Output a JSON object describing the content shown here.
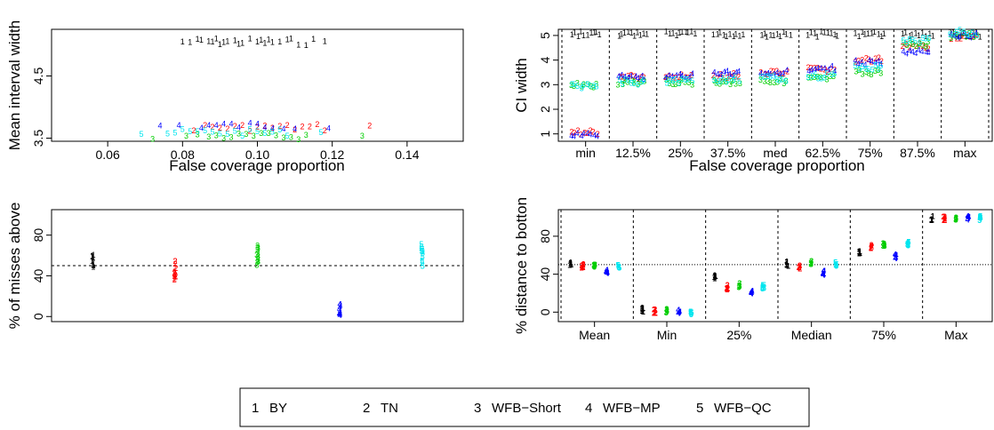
{
  "colors": {
    "1": "#000000",
    "2": "#ff0000",
    "3": "#00cd00",
    "4": "#0000ff",
    "5": "#00e5ee"
  },
  "legend": [
    {
      "code": "1",
      "label": "BY"
    },
    {
      "code": "2",
      "label": "TN"
    },
    {
      "code": "3",
      "label": "WFB−Short"
    },
    {
      "code": "4",
      "label": "WFB−MP"
    },
    {
      "code": "5",
      "label": "WFB−QC"
    }
  ],
  "chart_data": [
    {
      "type": "scatter",
      "xlabel": "False coverage proportion",
      "ylabel": "Mean interval width",
      "xlim": [
        0.045,
        0.155
      ],
      "ylim": [
        3.45,
        5.25
      ],
      "xticks": [
        "0.06",
        "0.08",
        "0.10",
        "0.12",
        "0.14"
      ],
      "yticks": [
        "3.5",
        "4.5"
      ],
      "series": [
        {
          "code": "1",
          "y": 5.05,
          "x": [
            0.08,
            0.082,
            0.084,
            0.085,
            0.087,
            0.088,
            0.089,
            0.09,
            0.091,
            0.092,
            0.094,
            0.095,
            0.096,
            0.098,
            0.1,
            0.101,
            0.102,
            0.103,
            0.104,
            0.106,
            0.108,
            0.109,
            0.111,
            0.113,
            0.115,
            0.118
          ]
        },
        {
          "code": "2",
          "y": 3.67,
          "x": [
            0.083,
            0.086,
            0.088,
            0.09,
            0.092,
            0.094,
            0.096,
            0.098,
            0.1,
            0.102,
            0.104,
            0.106,
            0.108,
            0.11,
            0.112,
            0.114,
            0.116,
            0.118,
            0.13
          ]
        },
        {
          "code": "3",
          "y": 3.53,
          "x": [
            0.072,
            0.081,
            0.084,
            0.087,
            0.089,
            0.091,
            0.093,
            0.095,
            0.097,
            0.099,
            0.101,
            0.103,
            0.105,
            0.107,
            0.109,
            0.111,
            0.113,
            0.128
          ]
        },
        {
          "code": "4",
          "y": 3.7,
          "x": [
            0.074,
            0.079,
            0.085,
            0.087,
            0.089,
            0.091,
            0.093,
            0.095,
            0.098,
            0.1,
            0.102,
            0.104,
            0.107,
            0.11,
            0.119
          ]
        },
        {
          "code": "5",
          "y": 3.59,
          "x": [
            0.069,
            0.076,
            0.078,
            0.08,
            0.082,
            0.084,
            0.086,
            0.088,
            0.09,
            0.092,
            0.094,
            0.096,
            0.098,
            0.1,
            0.102,
            0.104,
            0.106,
            0.108,
            0.117
          ]
        }
      ]
    },
    {
      "type": "scatter",
      "xlabel": "False coverage proportion",
      "ylabel": "CI width",
      "ylim": [
        0.7,
        5.25
      ],
      "yticks": [
        "1",
        "2",
        "3",
        "4",
        "5"
      ],
      "categories": [
        "min",
        "12.5%",
        "25%",
        "37.5%",
        "med",
        "62.5%",
        "75%",
        "87.5%",
        "max"
      ],
      "series": [
        {
          "code": "1",
          "values": [
            5.05,
            5.05,
            5.05,
            5.05,
            5.05,
            5.05,
            5.05,
            5.05,
            5.05
          ]
        },
        {
          "code": "2",
          "values": [
            1.05,
            3.3,
            3.3,
            3.35,
            3.45,
            3.6,
            4.0,
            4.55,
            4.95
          ]
        },
        {
          "code": "3",
          "values": [
            2.95,
            3.05,
            3.1,
            3.1,
            3.15,
            3.25,
            3.5,
            4.65,
            5.0
          ]
        },
        {
          "code": "4",
          "values": [
            0.95,
            3.3,
            3.35,
            3.45,
            3.5,
            3.65,
            3.9,
            4.3,
            5.0
          ]
        },
        {
          "code": "5",
          "values": [
            2.95,
            3.1,
            3.15,
            3.2,
            3.25,
            3.35,
            3.7,
            4.8,
            5.1
          ]
        }
      ]
    },
    {
      "type": "scatter",
      "ylabel": "% of misses above",
      "ylim": [
        -5,
        105
      ],
      "yticks": [
        "0",
        "40",
        "80"
      ],
      "reference_line": 50,
      "series": [
        {
          "code": "1",
          "center": 55,
          "spread": 8
        },
        {
          "code": "2",
          "center": 47,
          "spread": 11
        },
        {
          "code": "3",
          "center": 60,
          "spread": 11
        },
        {
          "code": "4",
          "center": 7,
          "spread": 6
        },
        {
          "code": "5",
          "center": 61,
          "spread": 12
        }
      ]
    },
    {
      "type": "scatter",
      "ylabel": "% distance to botton",
      "ylim": [
        -10,
        108
      ],
      "yticks": [
        "0",
        "40",
        "80"
      ],
      "reference_line": 50,
      "categories": [
        "Mean",
        "Min",
        "25%",
        "Median",
        "75%",
        "Max"
      ],
      "series": [
        {
          "code": "1",
          "values": [
            52,
            3,
            38,
            52,
            64,
            100
          ]
        },
        {
          "code": "2",
          "values": [
            49,
            2,
            27,
            49,
            69,
            100
          ]
        },
        {
          "code": "3",
          "values": [
            51,
            2,
            29,
            52,
            72,
            100
          ]
        },
        {
          "code": "4",
          "values": [
            43,
            1,
            22,
            42,
            60,
            100
          ]
        },
        {
          "code": "5",
          "values": [
            50,
            1,
            28,
            51,
            73,
            100
          ]
        }
      ]
    }
  ]
}
